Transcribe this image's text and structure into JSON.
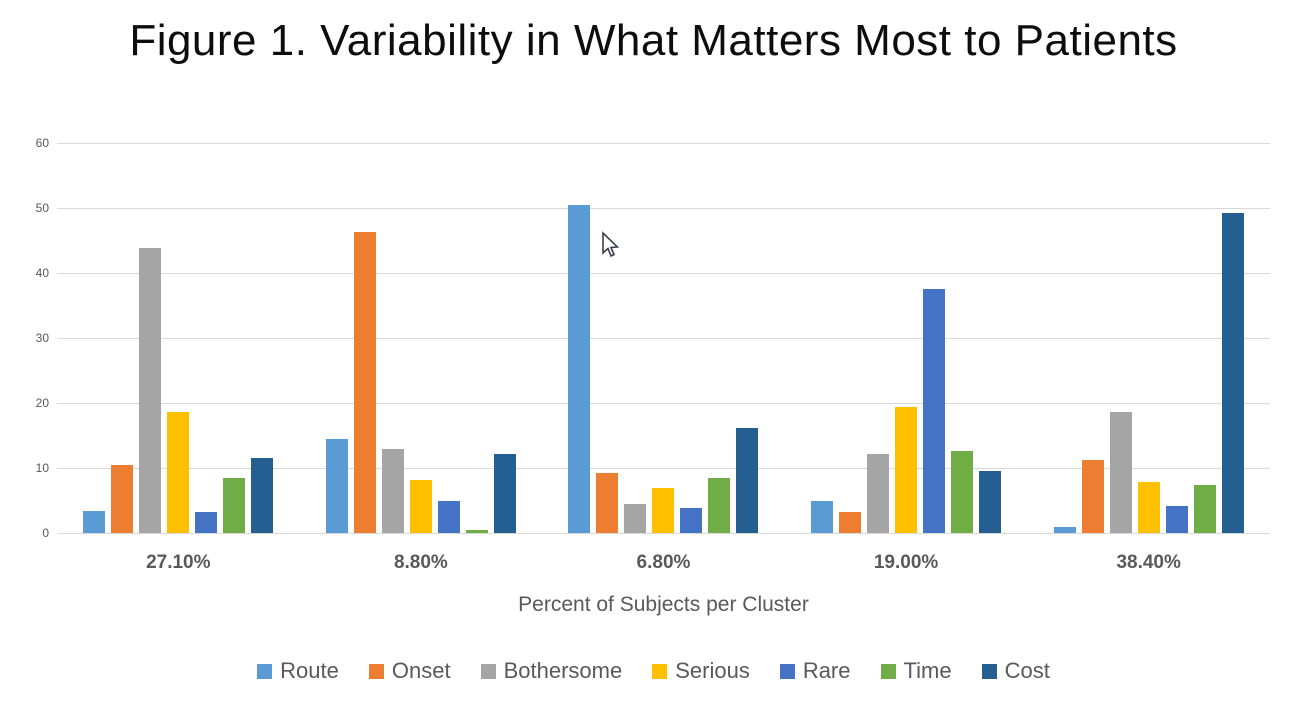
{
  "title": "Figure 1. Variability in What Matters Most to Patients",
  "axis": {
    "x_title": "Percent of Subjects per Cluster"
  },
  "chart_data": {
    "type": "bar",
    "title": "Figure 1. Variability in What Matters Most to Patients",
    "xlabel": "Percent of Subjects per Cluster",
    "ylabel": "",
    "ylim": [
      0,
      60
    ],
    "ytick_step": 10,
    "grid": true,
    "legend_position": "bottom",
    "categories": [
      "27.10%",
      "8.80%",
      "6.80%",
      "19.00%",
      "38.40%"
    ],
    "series": [
      {
        "name": "Route",
        "color": "#5B9BD5",
        "values": [
          3.4,
          14.5,
          50.4,
          5.0,
          1.0
        ]
      },
      {
        "name": "Onset",
        "color": "#ED7D31",
        "values": [
          10.5,
          46.3,
          9.3,
          3.3,
          11.3
        ]
      },
      {
        "name": "Bothersome",
        "color": "#A5A5A5",
        "values": [
          43.9,
          13.0,
          4.5,
          12.1,
          18.6
        ]
      },
      {
        "name": "Serious",
        "color": "#FFC000",
        "values": [
          18.6,
          8.2,
          6.9,
          19.4,
          7.9
        ]
      },
      {
        "name": "Rare",
        "color": "#4472C4",
        "values": [
          3.2,
          5.0,
          3.9,
          37.6,
          4.2
        ]
      },
      {
        "name": "Time",
        "color": "#70AD47",
        "values": [
          8.4,
          0.5,
          8.4,
          12.7,
          7.4
        ]
      },
      {
        "name": "Cost",
        "color": "#255E91",
        "values": [
          11.6,
          12.1,
          16.2,
          9.5,
          49.3
        ]
      }
    ]
  },
  "colors": {
    "gridline": "#d9d9d9",
    "axis_text": "#595959",
    "title_text": "#0d0d0d"
  },
  "cursor": {
    "name": "arrow-pointer"
  }
}
